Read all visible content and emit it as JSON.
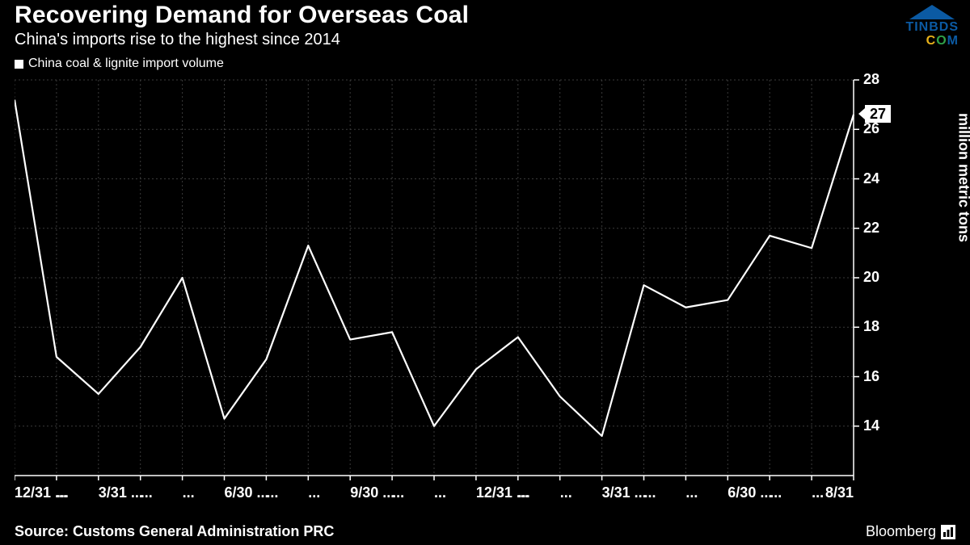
{
  "header": {
    "title": "Recovering Demand for Overseas Coal",
    "subtitle": "China's imports rise to the highest since 2014"
  },
  "legend": {
    "series_name": "China coal & lignite import volume"
  },
  "watermark": {
    "line1": "TINBDS",
    "c": "C",
    "o": "O",
    "m": "M"
  },
  "chart": {
    "type": "line",
    "ylabel": "million metric tons",
    "ylim": [
      12,
      28
    ],
    "ytick_step": 2,
    "yticks": [
      14,
      16,
      18,
      20,
      22,
      24,
      26,
      28
    ],
    "line_color": "#ffffff",
    "line_width": 2.2,
    "background_color": "#000000",
    "grid_color": "#3a3a3a",
    "axis_color": "#ffffff",
    "callout_value": "27",
    "xticks": [
      "12/31 ...",
      "...",
      "3/31 ...",
      "...",
      "...",
      "6/30 ...",
      "...",
      "...",
      "9/30 ...",
      "...",
      "...",
      "12/31 ...",
      "...",
      "...",
      "3/31 ...",
      "...",
      "...",
      "6/30 ...",
      "...",
      "...",
      "8/31"
    ],
    "values": [
      27.2,
      16.8,
      15.3,
      17.2,
      20.0,
      14.3,
      16.7,
      21.3,
      17.5,
      17.8,
      14.0,
      16.3,
      17.6,
      15.2,
      13.6,
      19.7,
      18.8,
      19.1,
      21.7,
      21.2,
      26.6
    ]
  },
  "footer": {
    "source": "Source: Customs General Administration PRC",
    "brand": "Bloomberg"
  }
}
